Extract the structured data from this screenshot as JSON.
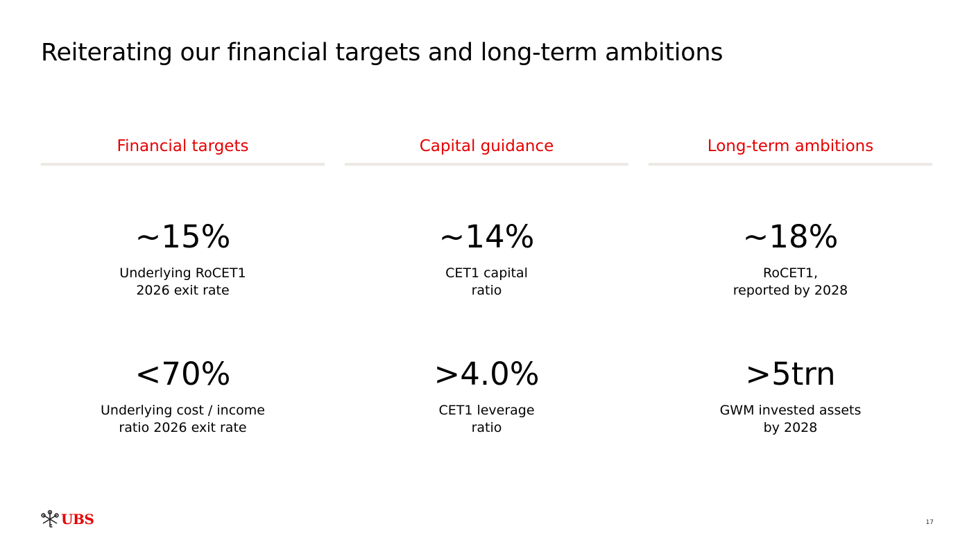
{
  "title": "Reiterating our financial targets and long-term ambitions",
  "columns": [
    {
      "heading": "Financial targets",
      "metrics": [
        {
          "value": "~15%",
          "label_lines": [
            "Underlying RoCET1",
            "2026 exit rate"
          ]
        },
        {
          "value": "<70%",
          "label_lines": [
            "Underlying cost / income",
            "ratio 2026 exit rate"
          ]
        }
      ]
    },
    {
      "heading": "Capital guidance",
      "metrics": [
        {
          "value": "~14%",
          "label_lines": [
            "CET1 capital",
            "ratio"
          ]
        },
        {
          "value": ">4.0%",
          "label_lines": [
            "CET1 leverage",
            "ratio"
          ]
        }
      ]
    },
    {
      "heading": "Long-term ambitions",
      "metrics": [
        {
          "value": "~18%",
          "label_lines": [
            "RoCET1,",
            "reported by 2028"
          ]
        },
        {
          "value": ">5trn",
          "label_lines": [
            "GWM invested assets",
            "by 2028"
          ]
        }
      ]
    }
  ],
  "footer": {
    "logo_text": "UBS",
    "logo_icon": "ubs-keys-icon",
    "page_number": "17"
  },
  "colors": {
    "accent": "#e60000",
    "divider": "#ece9e4",
    "text": "#000000"
  }
}
